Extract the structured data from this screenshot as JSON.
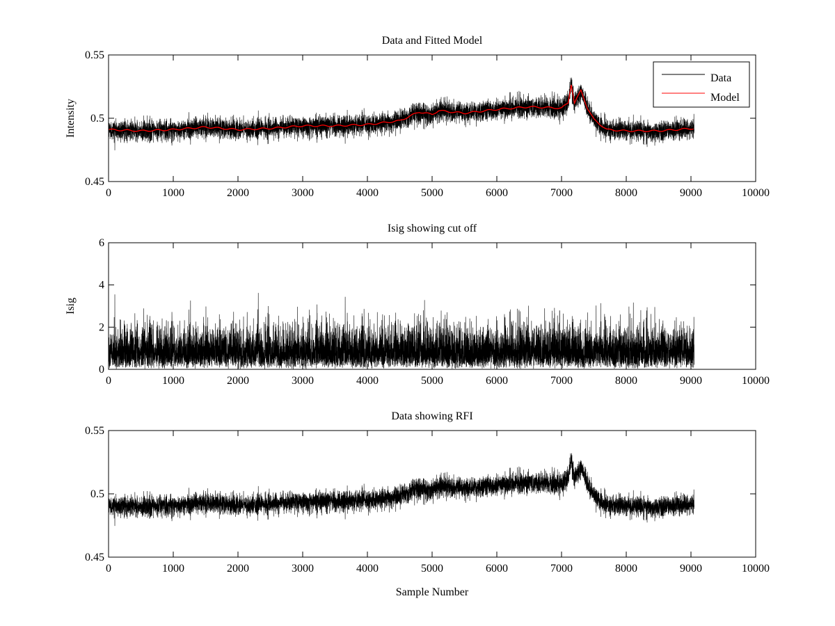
{
  "chart_data": [
    {
      "type": "line",
      "title": "Data and Fitted Model",
      "xlabel": "",
      "ylabel": "Intensity",
      "xlim": [
        0,
        10000
      ],
      "ylim": [
        0.45,
        0.55
      ],
      "xticks": [
        "0",
        "1000",
        "2000",
        "3000",
        "4000",
        "5000",
        "6000",
        "7000",
        "8000",
        "9000",
        "10000"
      ],
      "yticks": [
        "0.45",
        "0.5",
        "0.55"
      ],
      "legend": {
        "placement": "top-right",
        "entries": [
          "Data",
          "Model"
        ]
      },
      "series": [
        {
          "name": "Data",
          "color": "#000000",
          "n_samples": 9050,
          "noise_std": 0.004
        },
        {
          "name": "Model",
          "color": "#ff0000",
          "x": [
            0,
            500,
            1000,
            1500,
            2000,
            2500,
            3000,
            3500,
            4000,
            4500,
            4800,
            5000,
            5100,
            5500,
            6000,
            6500,
            7000,
            7100,
            7150,
            7200,
            7300,
            7400,
            7500,
            7700,
            8000,
            8500,
            9050
          ],
          "y": [
            0.491,
            0.49,
            0.491,
            0.493,
            0.491,
            0.492,
            0.494,
            0.494,
            0.495,
            0.498,
            0.505,
            0.503,
            0.506,
            0.504,
            0.507,
            0.509,
            0.508,
            0.512,
            0.527,
            0.512,
            0.522,
            0.508,
            0.499,
            0.491,
            0.49,
            0.49,
            0.492
          ]
        }
      ]
    },
    {
      "type": "line",
      "title": "Isig showing cut off",
      "xlabel": "",
      "ylabel": "Isig",
      "xlim": [
        0,
        10000
      ],
      "ylim": [
        0,
        6
      ],
      "xticks": [
        "0",
        "1000",
        "2000",
        "3000",
        "4000",
        "5000",
        "6000",
        "7000",
        "8000",
        "9000",
        "10000"
      ],
      "yticks": [
        "0",
        "2",
        "4",
        "6"
      ],
      "series": [
        {
          "name": "Isig",
          "color": "#000000",
          "n_samples": 9050,
          "max": 3.7
        }
      ]
    },
    {
      "type": "line",
      "title": "Data showing RFI",
      "xlabel": "Sample Number",
      "ylabel": "",
      "xlim": [
        0,
        10000
      ],
      "ylim": [
        0.45,
        0.55
      ],
      "xticks": [
        "0",
        "1000",
        "2000",
        "3000",
        "4000",
        "5000",
        "6000",
        "7000",
        "8000",
        "9000",
        "10000"
      ],
      "yticks": [
        "0.45",
        "0.5",
        "0.55"
      ],
      "series": [
        {
          "name": "Data",
          "color": "#000000",
          "n_samples": 9050
        }
      ]
    }
  ]
}
